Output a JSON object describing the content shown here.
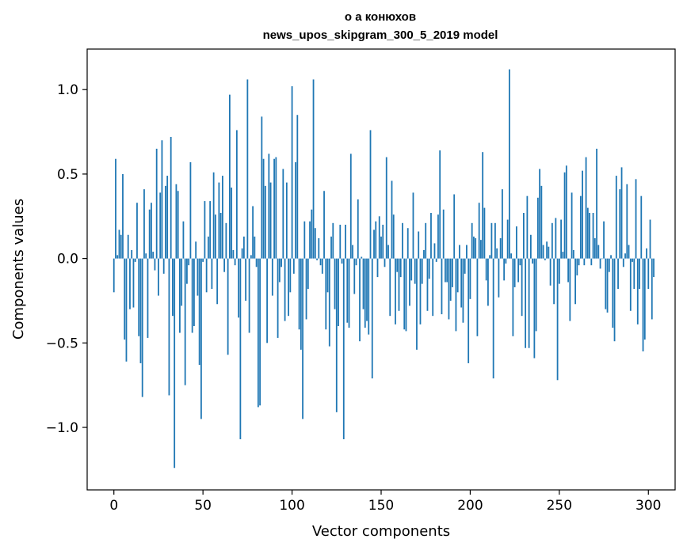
{
  "chart_data": {
    "type": "bar",
    "title_lines": [
      "о а конюхов",
      "news_upos_skipgram_300_5_2019 model"
    ],
    "xlabel": "Vector components",
    "ylabel": "Components values",
    "xlim": [
      -15,
      315
    ],
    "ylim": [
      -1.37,
      1.24
    ],
    "xticks": [
      0,
      50,
      100,
      150,
      200,
      250,
      300
    ],
    "xtick_labels": [
      "0",
      "50",
      "100",
      "150",
      "200",
      "250",
      "300"
    ],
    "yticks": [
      -1.0,
      -0.5,
      0.0,
      0.5,
      1.0
    ],
    "ytick_labels": [
      "−1.0",
      "−0.5",
      "0.0",
      "0.5",
      "1.0"
    ],
    "bar_color": "#1f77b4",
    "bar_width": 0.8,
    "values": [
      -0.2,
      0.59,
      0.02,
      0.17,
      0.14,
      0.5,
      -0.48,
      -0.61,
      0.14,
      -0.3,
      0.05,
      -0.29,
      -0.02,
      0.33,
      -0.46,
      -0.62,
      -0.82,
      0.41,
      0.03,
      -0.47,
      0.29,
      0.33,
      0.04,
      -0.07,
      0.65,
      -0.22,
      0.39,
      0.7,
      -0.09,
      0.43,
      0.49,
      -0.81,
      0.72,
      -0.34,
      -1.24,
      0.44,
      0.4,
      -0.44,
      -0.28,
      0.22,
      -0.75,
      -0.15,
      -0.04,
      0.57,
      -0.44,
      -0.4,
      0.1,
      -0.22,
      -0.63,
      -0.95,
      -0.02,
      0.34,
      -0.2,
      0.13,
      0.34,
      -0.18,
      0.51,
      0.26,
      -0.27,
      0.45,
      0.27,
      0.49,
      -0.08,
      0.21,
      -0.57,
      0.97,
      0.42,
      0.05,
      -0.04,
      0.76,
      -0.35,
      -1.07,
      0.06,
      0.13,
      -0.25,
      1.06,
      -0.44,
      0.02,
      0.31,
      0.13,
      -0.05,
      -0.88,
      -0.87,
      0.84,
      0.59,
      0.43,
      -0.5,
      0.62,
      0.45,
      -0.22,
      0.59,
      0.6,
      -0.47,
      -0.14,
      -0.05,
      0.53,
      -0.37,
      0.45,
      -0.34,
      -0.2,
      1.02,
      -0.09,
      0.57,
      0.85,
      -0.42,
      -0.54,
      -0.95,
      0.22,
      -0.36,
      -0.18,
      0.22,
      0.29,
      1.06,
      0.18,
      -0.01,
      0.12,
      -0.04,
      -0.09,
      0.4,
      -0.42,
      -0.2,
      -0.52,
      0.13,
      0.21,
      -0.3,
      -0.91,
      -0.4,
      0.2,
      -0.03,
      -1.07,
      0.2,
      -0.38,
      -0.41,
      0.62,
      0.08,
      -0.21,
      -0.04,
      0.35,
      -0.49,
      0.01,
      -0.3,
      -0.41,
      -0.37,
      -0.45,
      0.76,
      -0.71,
      0.17,
      0.22,
      -0.11,
      0.25,
      0.13,
      0.2,
      -0.05,
      0.6,
      0.08,
      -0.34,
      0.46,
      0.26,
      -0.39,
      -0.08,
      -0.31,
      -0.11,
      0.21,
      -0.42,
      -0.43,
      0.18,
      -0.28,
      -0.13,
      0.39,
      -0.15,
      -0.54,
      0.16,
      -0.39,
      -0.15,
      0.05,
      0.21,
      -0.31,
      -0.12,
      0.27,
      -0.34,
      0.09,
      -0.02,
      0.26,
      0.64,
      -0.33,
      0.29,
      -0.14,
      -0.14,
      -0.36,
      -0.25,
      -0.17,
      0.38,
      -0.43,
      -0.2,
      0.08,
      -0.29,
      -0.38,
      -0.09,
      0.08,
      -0.62,
      -0.24,
      0.21,
      0.13,
      0.12,
      -0.46,
      0.33,
      0.11,
      0.63,
      0.3,
      -0.13,
      -0.28,
      0.02,
      0.21,
      -0.71,
      0.21,
      0.06,
      -0.23,
      0.12,
      0.41,
      -0.13,
      -0.03,
      0.23,
      1.12,
      0.03,
      -0.46,
      -0.17,
      0.19,
      -0.14,
      -0.04,
      -0.34,
      0.27,
      -0.53,
      0.37,
      -0.53,
      0.14,
      -0.03,
      -0.59,
      -0.43,
      0.36,
      0.53,
      0.43,
      0.08,
      -0.01,
      0.1,
      0.07,
      -0.16,
      0.21,
      -0.27,
      0.24,
      -0.72,
      -0.15,
      0.23,
      0.04,
      0.51,
      0.55,
      -0.14,
      -0.37,
      0.39,
      0.05,
      -0.27,
      -0.1,
      -0.04,
      0.37,
      0.52,
      -0.04,
      0.6,
      0.3,
      0.27,
      -0.04,
      0.27,
      0.12,
      0.65,
      0.08,
      -0.06,
      0.0,
      0.22,
      -0.3,
      -0.32,
      -0.08,
      0.02,
      -0.41,
      -0.49,
      0.49,
      -0.18,
      0.41,
      0.54,
      -0.05,
      0.03,
      0.44,
      0.08,
      -0.31,
      -0.02,
      -0.18,
      0.47,
      -0.39,
      -0.18,
      0.37,
      -0.55,
      -0.48,
      0.06,
      -0.18,
      0.23,
      -0.36,
      -0.11
    ]
  }
}
